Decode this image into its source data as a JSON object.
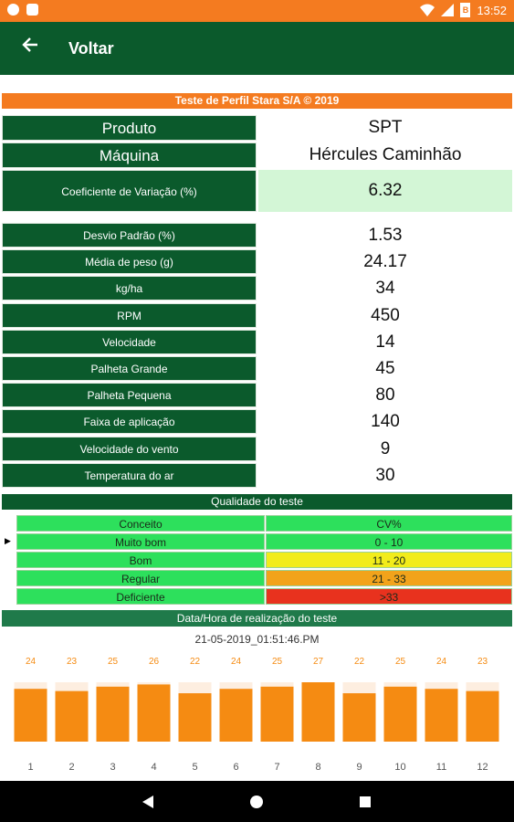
{
  "status_bar": {
    "time": "13:52",
    "battery_text": "B"
  },
  "app_bar": {
    "back_icon": "arrow-left-icon",
    "title": "Voltar"
  },
  "banner": "Teste de Perfil Stara S/A © 2019",
  "info": [
    {
      "label": "Produto",
      "value": "SPT"
    },
    {
      "label": "Máquina",
      "value": "Hércules Caminhão"
    },
    {
      "label": "Coeficiente de Variação (%)",
      "value": "6.32"
    }
  ],
  "metrics": [
    {
      "label": "Desvio Padrão (%)",
      "value": "1.53"
    },
    {
      "label": "Média de peso (g)",
      "value": "24.17"
    },
    {
      "label": "kg/ha",
      "value": "34"
    },
    {
      "label": "RPM",
      "value": "450"
    },
    {
      "label": "Velocidade",
      "value": "14"
    },
    {
      "label": "Palheta Grande",
      "value": "45"
    },
    {
      "label": "Palheta Pequena",
      "value": "80"
    },
    {
      "label": "Faixa de aplicação",
      "value": "140"
    },
    {
      "label": "Velocidade do vento",
      "value": "9"
    },
    {
      "label": "Temperatura do ar",
      "value": "30"
    }
  ],
  "quality": {
    "header": "Qualidade do teste",
    "columns": [
      "Conceito",
      "CV%"
    ],
    "rows": [
      {
        "concept": "Muito bom",
        "cv": "0 - 10",
        "color": "#2de05c"
      },
      {
        "concept": "Bom",
        "cv": "11 - 20",
        "color": "#f2ec1c"
      },
      {
        "concept": "Regular",
        "cv": "21 - 33",
        "color": "#f2a31b"
      },
      {
        "concept": "Deficiente",
        "cv": ">33",
        "color": "#e8321e"
      }
    ],
    "selected_index": 0,
    "header_row_color": "#2de05c"
  },
  "date": {
    "header": "Data/Hora de realização do teste",
    "value": "21-05-2019_01:51:46.PM"
  },
  "chart_data": {
    "type": "bar",
    "categories": [
      "1",
      "2",
      "3",
      "4",
      "5",
      "6",
      "7",
      "8",
      "9",
      "10",
      "11",
      "12"
    ],
    "values": [
      24,
      23,
      25,
      26,
      22,
      24,
      25,
      27,
      22,
      25,
      24,
      23
    ],
    "ylim": [
      0,
      27
    ],
    "bar_color": "#f58b12",
    "label_color": "#f58b12"
  }
}
